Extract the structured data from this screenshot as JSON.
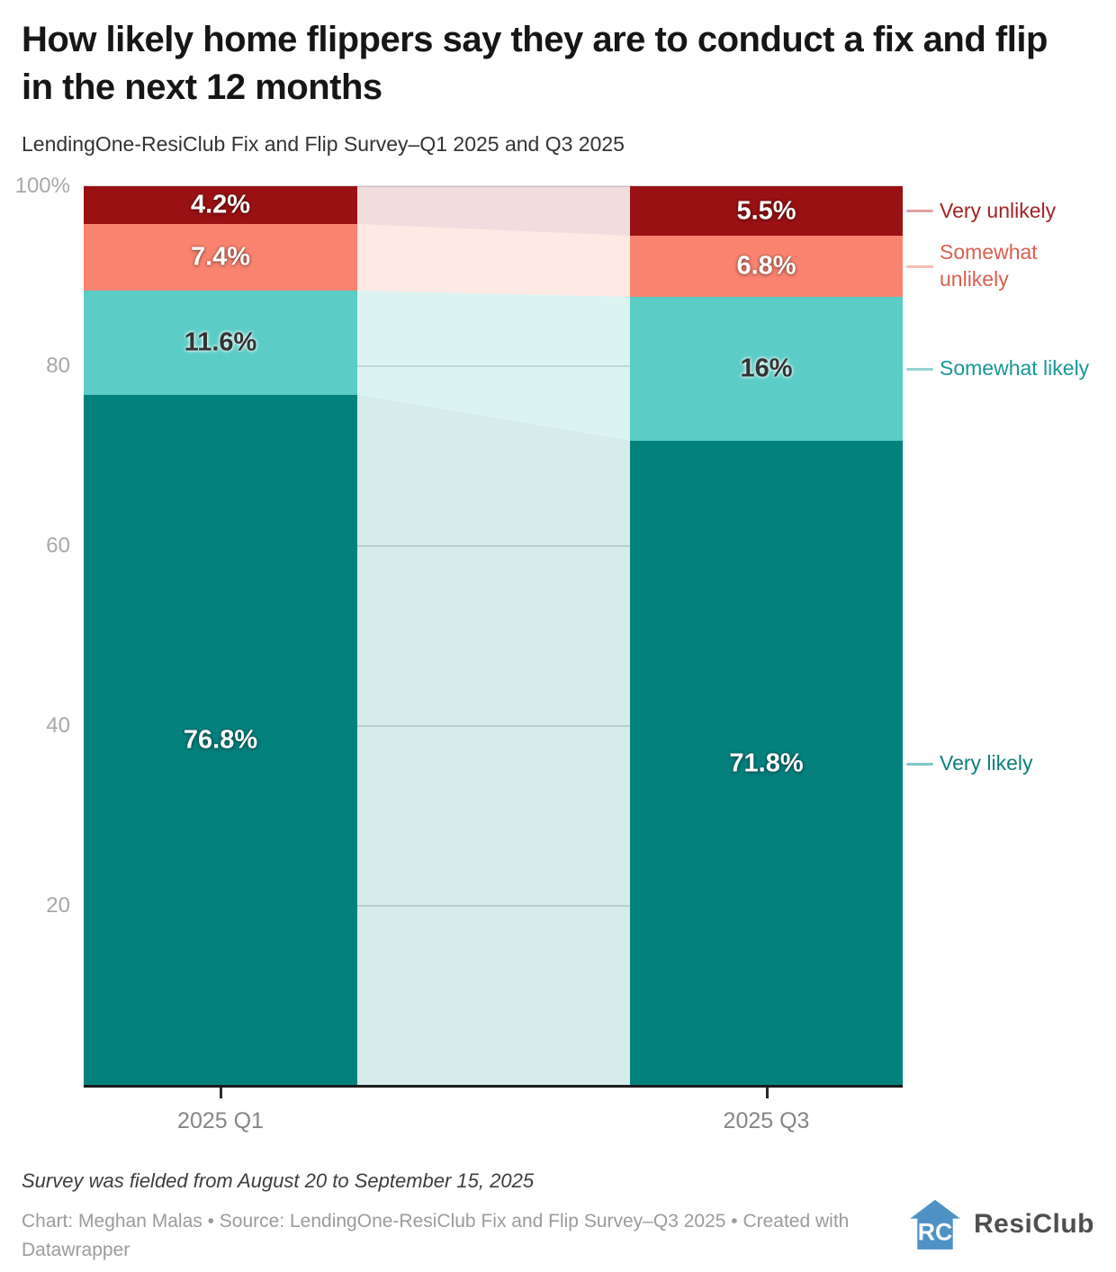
{
  "title": "How likely home flippers say they are to conduct a fix and flip in the next 12 months",
  "subtitle": "LendingOne-ResiClub Fix and Flip Survey–Q1 2025 and Q3 2025",
  "chart_data": {
    "type": "bar",
    "stacked": true,
    "stack_order": "top-to-bottom",
    "categories": [
      "2025 Q1",
      "2025 Q3"
    ],
    "series": [
      {
        "name": "Very unlikely",
        "values": [
          4.2,
          5.5
        ],
        "value_labels": [
          "4.2%",
          "5.5%"
        ],
        "color": "#9a1114",
        "connector_color": "rgba(154,17,20,0.14)",
        "legend_line_color": "#dfa3a4",
        "legend_text_color": "#a62222",
        "label_style": "light"
      },
      {
        "name": "Somewhat unlikely",
        "values": [
          7.4,
          6.8
        ],
        "value_labels": [
          "7.4%",
          "6.8%"
        ],
        "color": "#fa8370",
        "connector_color": "rgba(250,131,112,0.18)",
        "legend_line_color": "#f4bcb1",
        "legend_text_color": "#d9604f",
        "label_style": "light"
      },
      {
        "name": "Somewhat likely",
        "values": [
          11.6,
          16
        ],
        "value_labels": [
          "11.6%",
          "16%"
        ],
        "color": "#5bccc6",
        "connector_color": "rgba(90,203,197,0.22)",
        "legend_line_color": "#93d4cf",
        "legend_text_color": "#179894",
        "label_style": "dark"
      },
      {
        "name": "Very likely",
        "values": [
          76.8,
          71.8
        ],
        "value_labels": [
          "76.8%",
          "71.8%"
        ],
        "color": "#03817d",
        "connector_color": "rgba(3,129,125,0.16)",
        "legend_line_color": "#7ec6c3",
        "legend_text_color": "#0d7f7c",
        "label_style": "light"
      }
    ],
    "y_ticks": [
      {
        "value": 100,
        "label": "100%"
      },
      {
        "value": 80,
        "label": "80"
      },
      {
        "value": 60,
        "label": "60"
      },
      {
        "value": 40,
        "label": "40"
      },
      {
        "value": 20,
        "label": "20"
      }
    ],
    "ylim": [
      0,
      100
    ],
    "grid": true,
    "legend_position": "right"
  },
  "footer": {
    "note": "Survey was fielded from August 20 to September 15, 2025",
    "credit": "Chart: Meghan Malas • Source: LendingOne-ResiClub Fix and Flip Survey–Q3 2025 • Created with Datawrapper"
  },
  "logo": {
    "text": "ResiClub",
    "color": "#4e92c5"
  }
}
